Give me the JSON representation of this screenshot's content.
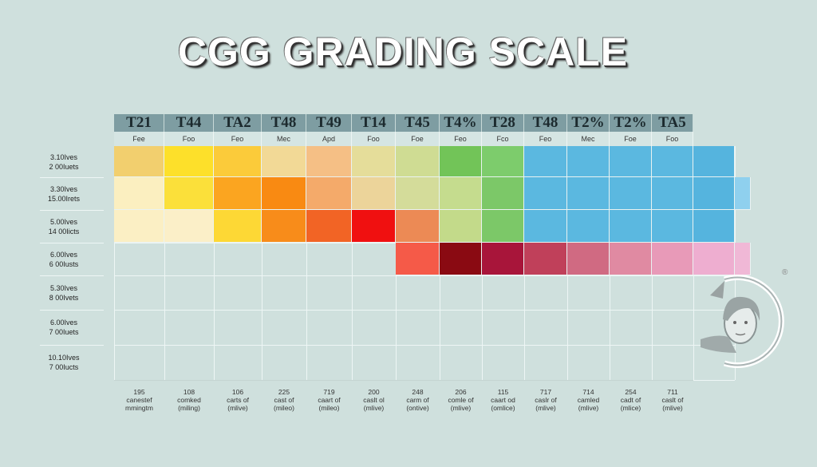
{
  "title": "CGG GRADING SCALE",
  "chart_data": {
    "type": "heatmap",
    "title": "CGG GRADING SCALE",
    "columns": [
      "T21",
      "T44",
      "TA2",
      "T48",
      "T49",
      "T14",
      "T45",
      "T4%",
      "T28",
      "T48",
      "T2%",
      "T2%",
      "TA5"
    ],
    "column_sublabels": [
      "Fee",
      "Foo",
      "Feo",
      "Mec",
      "Apd",
      "Foo",
      "Foe",
      "Feo",
      "Fco",
      "Feo",
      "Mec",
      "Foe",
      "Foo"
    ],
    "row_labels": [
      [
        "3.10Ives",
        "2 00Iuets"
      ],
      [
        "3.30Ives",
        "15.00Irets"
      ],
      [
        "5.00Ives",
        "14 00Iicts"
      ],
      [
        "6.00Ives",
        "6 00Iusts"
      ],
      [
        "5.30Ives",
        "8 00Ivets"
      ],
      [
        "6.00Ives",
        "7 00Iuets"
      ],
      [
        "10.10Ives",
        "7 00Iucts"
      ]
    ],
    "cell_colors": [
      [
        "#f2cf6e",
        "#fde02a",
        "#fbcb3a",
        "#f2d996",
        "#f5bf85",
        "#e5dd9a",
        "#cfdc93",
        "#72c458",
        "#7dcc6c",
        "#5bb8e0",
        "#5bb8e0",
        "#5bb8e0",
        "#5bb8e0",
        "#55b4de",
        null
      ],
      [
        "#fbefc0",
        "#fbe03a",
        "#fba520",
        "#f98a12",
        "#f4aa6a",
        "#ecd49a",
        "#d4dc9a",
        "#c5dc8e",
        "#7cc868",
        "#5bb8e0",
        "#5bb8e0",
        "#5bb8e0",
        "#5bb8e0",
        "#55b4de",
        "#8fd0ee"
      ],
      [
        "#fbefc4",
        "#fbefc8",
        "#fdd835",
        "#f88c1a",
        "#f26425",
        "#f01010",
        "#ec8a55",
        "#c3da8a",
        "#7cc868",
        "#5bb8e0",
        "#5bb8e0",
        "#5bb8e0",
        "#5bb8e0",
        "#55b4de",
        null
      ],
      [
        null,
        null,
        null,
        null,
        null,
        null,
        "#f55a48",
        "#8a0a12",
        "#a8153a",
        "#c0405a",
        "#d06a82",
        "#e08aa2",
        "#e89ab8",
        "#eeaed0",
        "#f0b8d6"
      ],
      [],
      [],
      []
    ],
    "footer": [
      [
        "195",
        "canestef",
        "mmingtm"
      ],
      [
        "108",
        "comked",
        "(miling)"
      ],
      [
        "106",
        "carts of",
        "(mlive)"
      ],
      [
        "225",
        "cast of",
        "(mileo)"
      ],
      [
        "719",
        "caart of",
        "(mileo)"
      ],
      [
        "200",
        "caslt ol",
        "(mlive)"
      ],
      [
        "248",
        "carm of",
        "(ontive)"
      ],
      [
        "206",
        "comle of",
        "(mlive)"
      ],
      [
        "115",
        "caart od",
        "(omlice)"
      ],
      [
        "717",
        "caslr of",
        "(mlive)"
      ],
      [
        "714",
        "camled",
        "(mlive)"
      ],
      [
        "254",
        "cadt of",
        "(mlice)"
      ],
      [
        "711",
        "caslt of",
        "(mlive)"
      ]
    ]
  },
  "logo": {
    "mark": "®",
    "icon": "woman-portrait-circular-arrow"
  }
}
